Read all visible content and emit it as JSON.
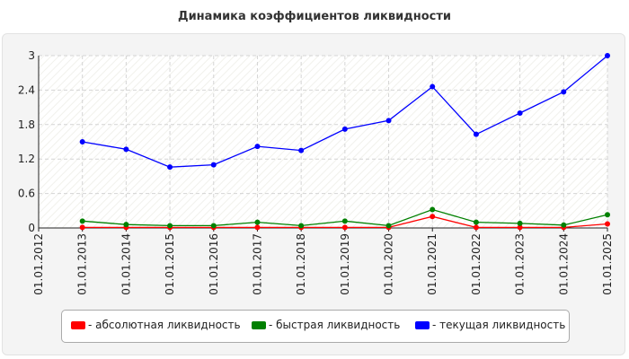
{
  "chart_data": {
    "type": "line",
    "title": "Динамика коэффициентов ликвидности",
    "categories": [
      "01.01.2012",
      "01.01.2013",
      "01.01.2014",
      "01.01.2015",
      "01.01.2016",
      "01.01.2017",
      "01.01.2018",
      "01.01.2019",
      "01.01.2020",
      "01.01.2021",
      "01.01.2022",
      "01.01.2023",
      "01.01.2024",
      "01.01.2025"
    ],
    "ylim": [
      0,
      3
    ],
    "yticks": [
      "0",
      "0.6",
      "1.2",
      "1.8",
      "2.4",
      "3"
    ],
    "grid": true,
    "legend_position": "bottom",
    "series": [
      {
        "name": "- абсолютная ликвидность",
        "color": "#ff0000",
        "values": [
          null,
          0.01,
          0.01,
          0.01,
          0.01,
          0.01,
          0.01,
          0.01,
          0.01,
          0.2,
          0.01,
          0.01,
          0.01,
          0.07
        ]
      },
      {
        "name": "- быстрая ликвидность",
        "color": "#008000",
        "values": [
          null,
          0.12,
          0.06,
          0.04,
          0.04,
          0.1,
          0.04,
          0.12,
          0.04,
          0.32,
          0.1,
          0.08,
          0.05,
          0.23
        ]
      },
      {
        "name": "- текущая ликвидность",
        "color": "#0000ff",
        "values": [
          null,
          1.5,
          1.37,
          1.06,
          1.1,
          1.42,
          1.35,
          1.72,
          1.87,
          2.46,
          1.63,
          2.0,
          2.37,
          3.0
        ]
      }
    ]
  }
}
